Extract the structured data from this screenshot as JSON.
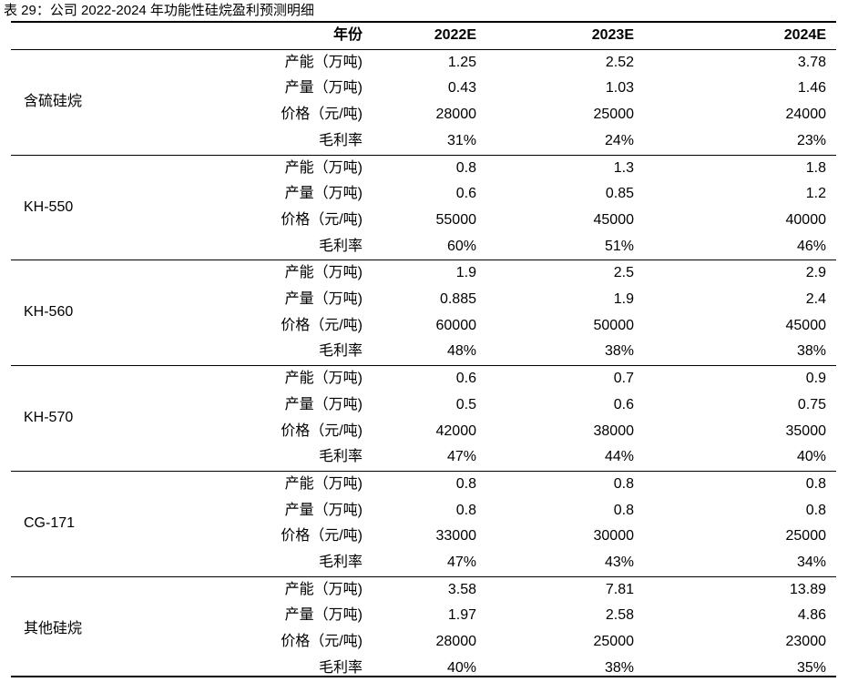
{
  "caption": "表 29：公司 2022-2024 年功能性硅烷盈利预测明细",
  "header": {
    "metric": "年份",
    "years": [
      "2022E",
      "2023E",
      "2024E"
    ]
  },
  "groups": [
    {
      "name": "含硫硅烷",
      "rows": [
        {
          "metric": "产能（万吨)",
          "values": [
            "1.25",
            "2.52",
            "3.78"
          ]
        },
        {
          "metric": "产量（万吨)",
          "values": [
            "0.43",
            "1.03",
            "1.46"
          ]
        },
        {
          "metric": "价格（元/吨)",
          "values": [
            "28000",
            "25000",
            "24000"
          ]
        },
        {
          "metric": "毛利率",
          "values": [
            "31%",
            "24%",
            "23%"
          ]
        }
      ]
    },
    {
      "name": "KH-550",
      "rows": [
        {
          "metric": "产能（万吨)",
          "values": [
            "0.8",
            "1.3",
            "1.8"
          ]
        },
        {
          "metric": "产量（万吨)",
          "values": [
            "0.6",
            "0.85",
            "1.2"
          ]
        },
        {
          "metric": "价格（元/吨)",
          "values": [
            "55000",
            "45000",
            "40000"
          ]
        },
        {
          "metric": "毛利率",
          "values": [
            "60%",
            "51%",
            "46%"
          ]
        }
      ]
    },
    {
      "name": "KH-560",
      "rows": [
        {
          "metric": "产能（万吨)",
          "values": [
            "1.9",
            "2.5",
            "2.9"
          ]
        },
        {
          "metric": "产量（万吨)",
          "values": [
            "0.885",
            "1.9",
            "2.4"
          ]
        },
        {
          "metric": "价格（元/吨)",
          "values": [
            "60000",
            "50000",
            "45000"
          ]
        },
        {
          "metric": "毛利率",
          "values": [
            "48%",
            "38%",
            "38%"
          ]
        }
      ]
    },
    {
      "name": "KH-570",
      "rows": [
        {
          "metric": "产能（万吨)",
          "values": [
            "0.6",
            "0.7",
            "0.9"
          ]
        },
        {
          "metric": "产量（万吨)",
          "values": [
            "0.5",
            "0.6",
            "0.75"
          ]
        },
        {
          "metric": "价格（元/吨)",
          "values": [
            "42000",
            "38000",
            "35000"
          ]
        },
        {
          "metric": "毛利率",
          "values": [
            "47%",
            "44%",
            "40%"
          ]
        }
      ]
    },
    {
      "name": "CG-171",
      "rows": [
        {
          "metric": "产能（万吨)",
          "values": [
            "0.8",
            "0.8",
            "0.8"
          ]
        },
        {
          "metric": "产量（万吨)",
          "values": [
            "0.8",
            "0.8",
            "0.8"
          ]
        },
        {
          "metric": "价格（元/吨)",
          "values": [
            "33000",
            "30000",
            "25000"
          ]
        },
        {
          "metric": "毛利率",
          "values": [
            "47%",
            "43%",
            "34%"
          ]
        }
      ]
    },
    {
      "name": "其他硅烷",
      "rows": [
        {
          "metric": "产能（万吨)",
          "values": [
            "3.58",
            "7.81",
            "13.89"
          ]
        },
        {
          "metric": "产量（万吨)",
          "values": [
            "1.97",
            "2.58",
            "4.86"
          ]
        },
        {
          "metric": "价格（元/吨)",
          "values": [
            "28000",
            "25000",
            "23000"
          ]
        },
        {
          "metric": "毛利率",
          "values": [
            "40%",
            "38%",
            "35%"
          ]
        }
      ]
    }
  ]
}
